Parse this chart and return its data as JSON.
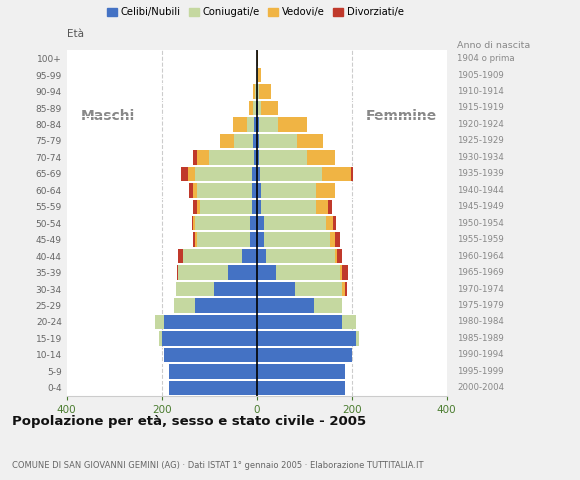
{
  "age_groups": [
    "0-4",
    "5-9",
    "10-14",
    "15-19",
    "20-24",
    "25-29",
    "30-34",
    "35-39",
    "40-44",
    "45-49",
    "50-54",
    "55-59",
    "60-64",
    "65-69",
    "70-74",
    "75-79",
    "80-84",
    "85-89",
    "90-94",
    "95-99",
    "100+"
  ],
  "birth_years": [
    "2000-2004",
    "1995-1999",
    "1990-1994",
    "1985-1989",
    "1980-1984",
    "1975-1979",
    "1970-1974",
    "1965-1969",
    "1960-1964",
    "1955-1959",
    "1950-1954",
    "1945-1949",
    "1940-1944",
    "1935-1939",
    "1930-1934",
    "1925-1929",
    "1920-1924",
    "1915-1919",
    "1910-1914",
    "1905-1909",
    "1904 o prima"
  ],
  "colors": {
    "celibe": "#4472c4",
    "coniugato": "#c5d8a0",
    "vedovo": "#f0b444",
    "divorziato": "#c0392b"
  },
  "males": {
    "celibe": [
      185,
      185,
      195,
      200,
      195,
      130,
      90,
      60,
      30,
      15,
      15,
      10,
      10,
      10,
      5,
      8,
      5,
      2,
      0,
      0,
      0
    ],
    "coniugato": [
      0,
      0,
      0,
      5,
      20,
      45,
      80,
      105,
      125,
      110,
      115,
      110,
      115,
      120,
      95,
      40,
      15,
      5,
      3,
      0,
      0
    ],
    "vedovo": [
      0,
      0,
      0,
      0,
      0,
      0,
      0,
      0,
      0,
      5,
      5,
      5,
      10,
      15,
      25,
      30,
      30,
      10,
      5,
      0,
      0
    ],
    "divorziato": [
      0,
      0,
      0,
      0,
      0,
      0,
      0,
      2,
      10,
      5,
      2,
      8,
      8,
      15,
      10,
      0,
      0,
      0,
      0,
      0,
      0
    ]
  },
  "females": {
    "celibe": [
      185,
      185,
      200,
      210,
      180,
      120,
      80,
      40,
      20,
      15,
      15,
      10,
      10,
      8,
      5,
      5,
      5,
      2,
      0,
      0,
      0
    ],
    "coniugato": [
      0,
      0,
      0,
      5,
      30,
      60,
      100,
      135,
      145,
      140,
      130,
      115,
      115,
      130,
      100,
      80,
      40,
      8,
      5,
      2,
      0
    ],
    "vedovo": [
      0,
      0,
      0,
      0,
      0,
      0,
      5,
      5,
      5,
      10,
      15,
      25,
      40,
      60,
      60,
      55,
      60,
      35,
      25,
      8,
      2
    ],
    "divorziato": [
      0,
      0,
      0,
      0,
      0,
      0,
      5,
      12,
      10,
      10,
      8,
      8,
      0,
      5,
      0,
      0,
      0,
      0,
      0,
      0,
      0
    ]
  },
  "title": "Popolazione per età, sesso e stato civile - 2005",
  "subtitle": "COMUNE DI SAN GIOVANNI GEMINI (AG) · Dati ISTAT 1° gennaio 2005 · Elaborazione TUTTITALIA.IT",
  "age_label": "Età",
  "birth_year_label": "Anno di nascita",
  "xlim": 400,
  "males_label": "Maschi",
  "females_label": "Femmine",
  "legend_labels": [
    "Celibi/Nubili",
    "Coniugati/e",
    "Vedovi/e",
    "Divorziati/e"
  ],
  "background_color": "#f0f0f0",
  "plot_bg_color": "#ffffff"
}
